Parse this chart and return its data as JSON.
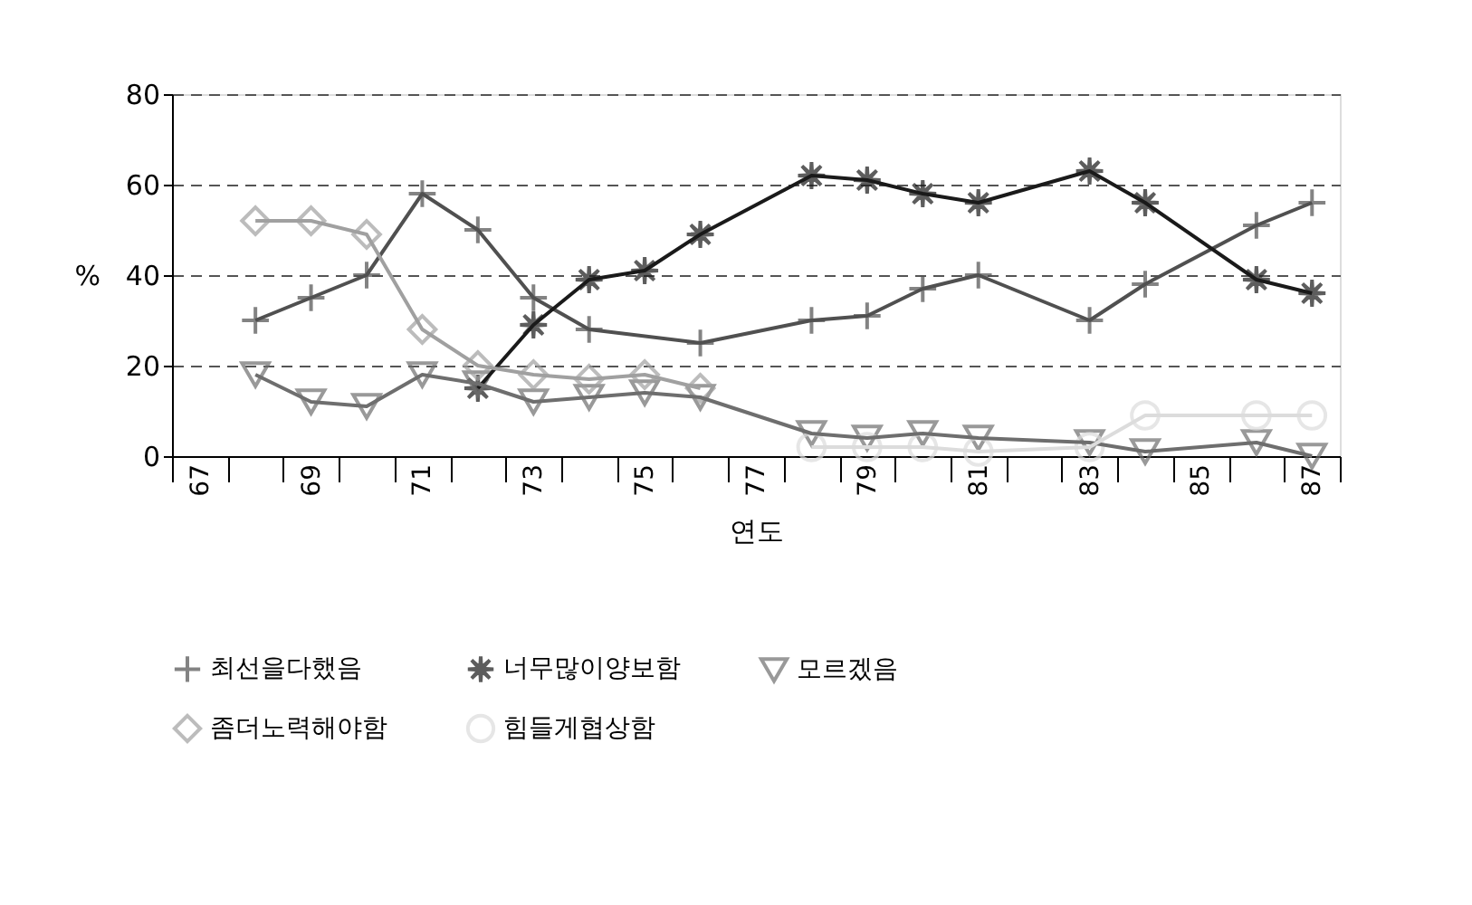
{
  "chart_data": {
    "type": "line",
    "xlabel": "연도",
    "ylabel": "%",
    "categories": [
      "67",
      null,
      "69",
      null,
      "71",
      null,
      "73",
      null,
      "75",
      null,
      "77",
      null,
      "79",
      null,
      "81",
      null,
      "83",
      null,
      "85",
      null,
      "87"
    ],
    "ylim": [
      0,
      80
    ],
    "yticks": [
      0,
      20,
      40,
      60,
      80
    ],
    "grid": "y",
    "legend": "bottom",
    "line_style": "solid",
    "series": [
      {
        "name": "최선을다했음",
        "color": "#505050",
        "marker": "cross",
        "values": [
          null,
          30,
          35,
          40,
          58,
          50,
          35,
          28,
          null,
          25,
          null,
          30,
          31,
          37,
          40,
          null,
          30,
          38,
          null,
          51,
          56
        ]
      },
      {
        "name": "너무많이양보함",
        "color": "#1a1a1a",
        "marker": "star",
        "values": [
          null,
          null,
          null,
          null,
          null,
          15,
          29,
          39,
          41,
          49,
          null,
          62,
          61,
          58,
          56,
          null,
          63,
          56,
          null,
          39,
          36
        ]
      },
      {
        "name": "모르겠음",
        "color": "#6e6e6e",
        "marker": "triangle",
        "values": [
          null,
          18,
          12,
          11,
          18,
          16,
          12,
          13,
          14,
          13,
          null,
          5,
          4,
          5,
          4,
          null,
          3,
          1,
          null,
          3,
          0
        ]
      },
      {
        "name": "좀더노력해야함",
        "color": "#a0a0a0",
        "marker": "diamond",
        "values": [
          null,
          52,
          52,
          49,
          28,
          20,
          18,
          17,
          18,
          15,
          null,
          null,
          null,
          null,
          null,
          null,
          null,
          null,
          null,
          null,
          null
        ]
      },
      {
        "name": "힘들게협상함",
        "color": "#dcdcdc",
        "marker": "circle",
        "values": [
          null,
          null,
          null,
          null,
          null,
          null,
          null,
          null,
          null,
          null,
          null,
          2,
          2,
          2,
          1,
          null,
          2,
          9,
          null,
          9,
          9
        ]
      }
    ]
  }
}
